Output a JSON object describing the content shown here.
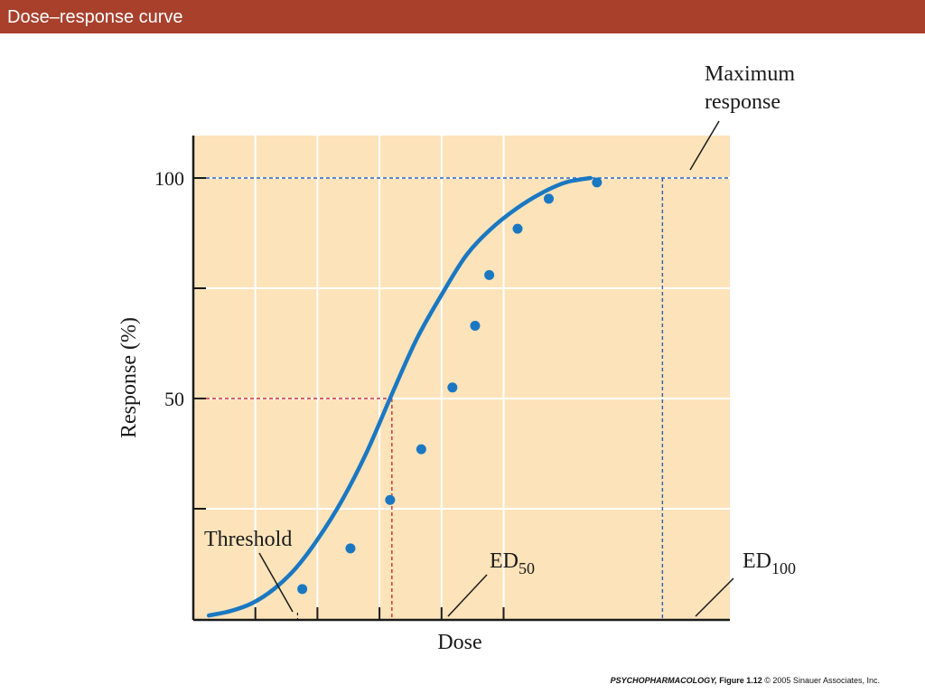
{
  "slide": {
    "title": "Dose–response curve"
  },
  "caption": {
    "book": "PSYCHOPHARMACOLOGY,",
    "figure": " Figure 1.12",
    "rest": "  © 2005 Sinauer Associates, Inc."
  },
  "colors": {
    "title_bar": "#a8402c",
    "plot_background": "#fde3ba",
    "curve": "#1a78c2",
    "ed50_guide": "#c8323a",
    "max_guide": "#2d5fb0"
  },
  "chart_data": {
    "type": "line",
    "title": "",
    "xlabel": "Dose",
    "ylabel": "Response (%)",
    "x_range": [
      0,
      6.8
    ],
    "ylim": [
      -5,
      110
    ],
    "y_ticks": [
      {
        "value": 100,
        "label": "100"
      },
      {
        "value": 75,
        "label": ""
      },
      {
        "value": 50,
        "label": "50"
      },
      {
        "value": 25,
        "label": ""
      }
    ],
    "x_ticks": [
      1,
      2,
      3,
      4,
      5
    ],
    "grid": true,
    "curve": [
      [
        0.25,
        0.8
      ],
      [
        0.6,
        1.8
      ],
      [
        0.95,
        3.6
      ],
      [
        1.3,
        6.8
      ],
      [
        1.65,
        11.5
      ],
      [
        2.0,
        18.0
      ],
      [
        2.4,
        27.0
      ],
      [
        2.8,
        38.0
      ],
      [
        3.2,
        51.0
      ],
      [
        3.6,
        63.5
      ],
      [
        4.0,
        73.5
      ],
      [
        4.4,
        82.5
      ],
      [
        4.8,
        88.5
      ],
      [
        5.2,
        93.0
      ],
      [
        5.6,
        96.5
      ],
      [
        6.0,
        99.0
      ],
      [
        6.4,
        100.0
      ]
    ],
    "points": [
      [
        1.7,
        6.8
      ],
      [
        2.55,
        16.0
      ],
      [
        3.25,
        27.0
      ],
      [
        3.8,
        38.5
      ],
      [
        4.35,
        52.5
      ],
      [
        4.75,
        66.5
      ],
      [
        5.0,
        78.0
      ],
      [
        5.5,
        88.5
      ],
      [
        6.05,
        95.3
      ],
      [
        6.9,
        99.0
      ]
    ],
    "annotations": {
      "max_response": {
        "line1": "Maximum",
        "line2": "response",
        "x": 7.56,
        "y": 100
      },
      "threshold": {
        "text": "Threshold",
        "x": 1.45,
        "y": 0
      },
      "ed50": {
        "base": "ED",
        "sub": "50",
        "x": 3.2,
        "y": 50
      },
      "ed100": {
        "base": "ED",
        "sub": "100",
        "x": 7.56,
        "y": 100
      }
    }
  }
}
